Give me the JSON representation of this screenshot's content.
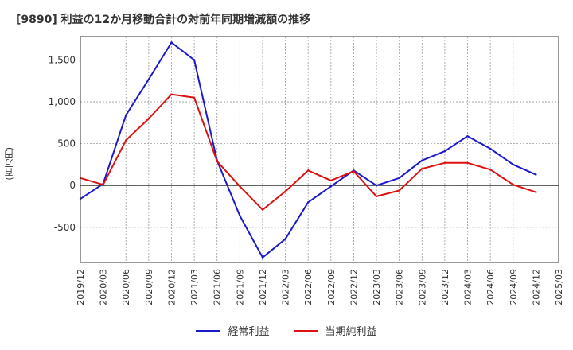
{
  "chart_data": {
    "type": "line",
    "title": "[9890]  利益の12か月移動合計の対前年同期増減額の推移",
    "ylabel": "(百万円)",
    "xlabel": "",
    "ylim": [
      -920,
      1780
    ],
    "yticks": [
      -500,
      0,
      500,
      1000,
      1500
    ],
    "ytick_labels": [
      "-500",
      "0",
      "500",
      "1,000",
      "1,500"
    ],
    "categories": [
      "2019/12",
      "2020/03",
      "2020/06",
      "2020/09",
      "2020/12",
      "2021/03",
      "2021/06",
      "2021/09",
      "2021/12",
      "2022/03",
      "2022/06",
      "2022/09",
      "2022/12",
      "2023/03",
      "2023/06",
      "2023/09",
      "2023/12",
      "2024/03",
      "2024/06",
      "2024/09",
      "2024/12",
      "2025/03"
    ],
    "series": [
      {
        "name": "経常利益",
        "color": "#1a1acc",
        "values": [
          -160,
          20,
          840,
          1270,
          1710,
          1500,
          300,
          -360,
          -860,
          -640,
          -200,
          -10,
          180,
          0,
          90,
          300,
          410,
          590,
          440,
          250,
          130,
          null
        ]
      },
      {
        "name": "当期純利益",
        "color": "#dd1111",
        "values": [
          90,
          10,
          540,
          800,
          1090,
          1050,
          290,
          -10,
          -290,
          -70,
          180,
          60,
          170,
          -130,
          -60,
          200,
          270,
          270,
          190,
          10,
          -80,
          null
        ]
      }
    ],
    "grid": true,
    "legend_position": "bottom-center"
  }
}
